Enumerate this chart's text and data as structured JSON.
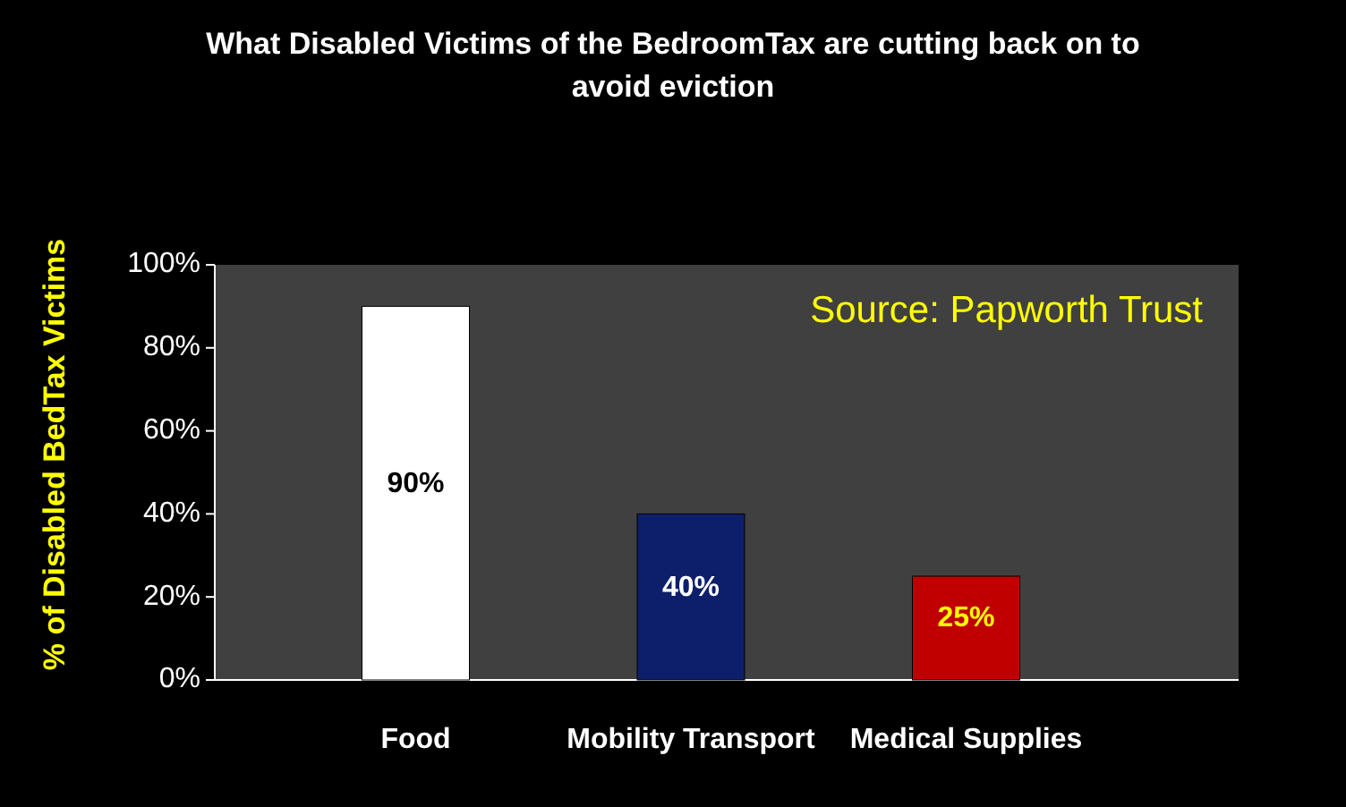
{
  "chart_data": {
    "type": "bar",
    "title": "What Disabled Victims of the BedroomTax are cutting back on to avoid eviction",
    "ylabel": "% of Disabled BedTax Victims",
    "annotations": [
      "Source: Papworth Trust"
    ],
    "categories": [
      "Food",
      "Mobility Transport",
      "Medical Supplies"
    ],
    "values": [
      90,
      40,
      25
    ],
    "colors": [
      "#ffffff",
      "#0d1f6b",
      "#c00000"
    ],
    "value_labels": [
      "90%",
      "40%",
      "25%"
    ],
    "ylim": [
      0,
      100
    ],
    "yticks": [
      {
        "value": 0,
        "label": "0%"
      },
      {
        "value": 20,
        "label": "20%"
      },
      {
        "value": 40,
        "label": "40%"
      },
      {
        "value": 60,
        "label": "60%"
      },
      {
        "value": 80,
        "label": "80%"
      },
      {
        "value": 100,
        "label": "100%"
      }
    ]
  }
}
